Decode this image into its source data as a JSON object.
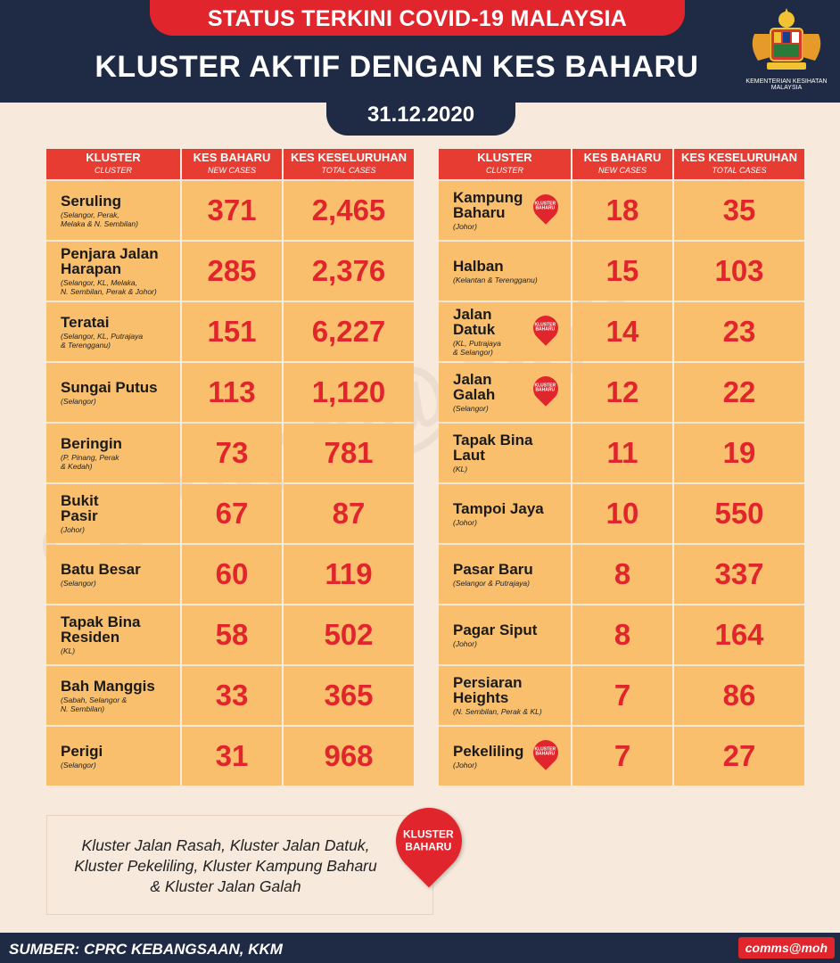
{
  "header": {
    "banner": "STATUS TERKINI COVID-19 MALAYSIA",
    "title": "KLUSTER AKTIF DENGAN KES BAHARU",
    "date": "31.12.2020",
    "ministry": "KEMENTERIAN KESIHATAN MALAYSIA"
  },
  "columns": {
    "cluster": "KLUSTER",
    "cluster_sub": "CLUSTER",
    "new": "KES BAHARU",
    "new_sub": "NEW CASES",
    "total": "KES KESELURUHAN",
    "total_sub": "TOTAL CASES"
  },
  "left_rows": [
    {
      "name": "Seruling",
      "states": "(Selangor, Perak,\nMelaka & N. Sembilan)",
      "new": "371",
      "total": "2,465",
      "new_cluster": false
    },
    {
      "name": "Penjara Jalan\nHarapan",
      "states": "(Selangor, KL, Melaka,\nN. Sembilan, Perak & Johor)",
      "new": "285",
      "total": "2,376",
      "new_cluster": false
    },
    {
      "name": "Teratai",
      "states": "(Selangor, KL, Putrajaya\n& Terengganu)",
      "new": "151",
      "total": "6,227",
      "new_cluster": false
    },
    {
      "name": "Sungai Putus",
      "states": "(Selangor)",
      "new": "113",
      "total": "1,120",
      "new_cluster": false
    },
    {
      "name": "Beringin",
      "states": "(P. Pinang, Perak\n& Kedah)",
      "new": "73",
      "total": "781",
      "new_cluster": false
    },
    {
      "name": "Bukit\nPasir",
      "states": "(Johor)",
      "new": "67",
      "total": "87",
      "new_cluster": false
    },
    {
      "name": "Batu Besar",
      "states": "(Selangor)",
      "new": "60",
      "total": "119",
      "new_cluster": false
    },
    {
      "name": "Tapak Bina\nResiden",
      "states": "(KL)",
      "new": "58",
      "total": "502",
      "new_cluster": false
    },
    {
      "name": "Bah Manggis",
      "states": "(Sabah, Selangor &\nN. Sembilan)",
      "new": "33",
      "total": "365",
      "new_cluster": false
    },
    {
      "name": "Perigi",
      "states": "(Selangor)",
      "new": "31",
      "total": "968",
      "new_cluster": false
    }
  ],
  "right_rows": [
    {
      "name": "Kampung\nBaharu",
      "states": "(Johor)",
      "new": "18",
      "total": "35",
      "new_cluster": true
    },
    {
      "name": "Halban",
      "states": "(Kelantan & Terengganu)",
      "new": "15",
      "total": "103",
      "new_cluster": false
    },
    {
      "name": "Jalan\nDatuk",
      "states": "(KL, Putrajaya\n& Selangor)",
      "new": "14",
      "total": "23",
      "new_cluster": true
    },
    {
      "name": "Jalan\nGalah",
      "states": "(Selangor)",
      "new": "12",
      "total": "22",
      "new_cluster": true
    },
    {
      "name": "Tapak Bina\nLaut",
      "states": "(KL)",
      "new": "11",
      "total": "19",
      "new_cluster": false
    },
    {
      "name": "Tampoi Jaya",
      "states": "(Johor)",
      "new": "10",
      "total": "550",
      "new_cluster": false
    },
    {
      "name": "Pasar Baru",
      "states": "(Selangor & Putrajaya)",
      "new": "8",
      "total": "337",
      "new_cluster": false
    },
    {
      "name": "Pagar Siput",
      "states": "(Johor)",
      "new": "8",
      "total": "164",
      "new_cluster": false
    },
    {
      "name": "Persiaran\nHeights",
      "states": "(N. Sembilan, Perak & KL)",
      "new": "7",
      "total": "86",
      "new_cluster": false
    },
    {
      "name": "Pekeliling",
      "states": "(Johor)",
      "new": "7",
      "total": "27",
      "new_cluster": true
    }
  ],
  "pin_label": "KLUSTER\nBAHARU",
  "note": "Kluster Jalan Rasah, Kluster Jalan Datuk,\nKluster Pekeliling, Kluster Kampung Baharu\n& Kluster Jalan Galah",
  "footer": {
    "source": "SUMBER: CPRC KEBANGSAAN, KKM",
    "brand": "comms@moh"
  },
  "watermark": "comms@moh",
  "colors": {
    "navy": "#1f2a44",
    "red": "#e0262c",
    "cell": "#f9bf6c",
    "header_cell": "#e73c31"
  }
}
